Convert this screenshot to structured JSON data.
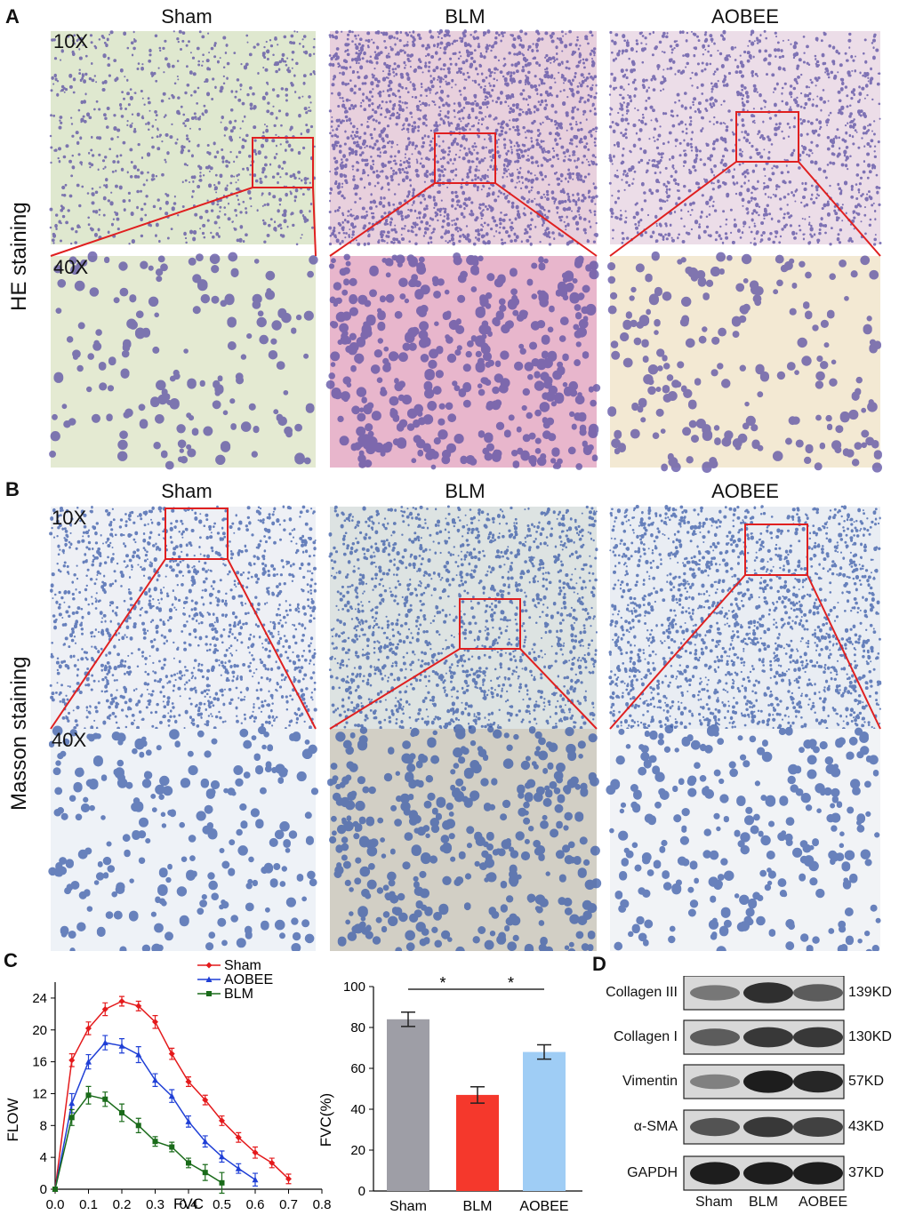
{
  "panel_a": {
    "letter": "A",
    "row_label": "HE staining",
    "columns": [
      "Sham",
      "BLM",
      "AOBEE"
    ],
    "mag_low": "10X",
    "mag_high": "40X",
    "colors": {
      "bg_low": [
        "#dfe8cf",
        "#e8d0dd",
        "#ecdde8"
      ],
      "bg_high": [
        "#e4ead2",
        "#e8b6cc",
        "#f3e9d3"
      ],
      "nucleus": "#5a4ea3"
    }
  },
  "panel_b": {
    "letter": "B",
    "row_label": "Masson staining",
    "columns": [
      "Sham",
      "BLM",
      "AOBEE"
    ],
    "mag_low": "10X",
    "mag_high": "40X",
    "colors": {
      "bg_low": [
        "#eef0f5",
        "#dde3e2",
        "#e9edf3"
      ],
      "bg_high": [
        "#eef2f7",
        "#d2cfc5",
        "#f1f3f6"
      ],
      "nucleus": "#3a5ba8"
    }
  },
  "panel_c": {
    "letter": "C",
    "chart_data": [
      {
        "type": "line",
        "xlabel": "FVC",
        "ylabel": "FLOW",
        "xlim": [
          0.0,
          0.8
        ],
        "ylim": [
          0,
          26
        ],
        "xticks": [
          "0.0",
          "0.1",
          "0.2",
          "0.3",
          "0.4",
          "0.5",
          "0.6",
          "0.7",
          "0.8"
        ],
        "yticks": [
          "0",
          "4",
          "8",
          "12",
          "16",
          "20",
          "24"
        ],
        "legend_position": "top-right",
        "series": [
          {
            "name": "Sham",
            "color": "#e41a1c",
            "x": [
              0.0,
              0.05,
              0.1,
              0.15,
              0.2,
              0.25,
              0.3,
              0.35,
              0.4,
              0.45,
              0.5,
              0.55,
              0.6,
              0.65,
              0.7
            ],
            "y": [
              0,
              16.2,
              20.2,
              22.6,
              23.6,
              23.0,
              21.0,
              17.0,
              13.5,
              11.2,
              8.6,
              6.5,
              4.6,
              3.3,
              1.3
            ],
            "err": [
              0,
              0.8,
              0.8,
              0.8,
              0.6,
              0.6,
              0.8,
              0.7,
              0.6,
              0.6,
              0.6,
              0.6,
              0.7,
              0.6,
              0.6
            ]
          },
          {
            "name": "AOBEE",
            "color": "#1f3fd6",
            "x": [
              0.0,
              0.05,
              0.1,
              0.15,
              0.2,
              0.25,
              0.3,
              0.35,
              0.4,
              0.45,
              0.5,
              0.55,
              0.6
            ],
            "y": [
              0,
              10.8,
              16.0,
              18.4,
              18.0,
              16.9,
              13.7,
              11.7,
              8.5,
              6.0,
              4.1,
              2.6,
              1.2
            ],
            "err": [
              0,
              1.2,
              0.9,
              0.9,
              0.9,
              1.0,
              0.8,
              0.8,
              0.7,
              0.7,
              0.7,
              0.6,
              0.8
            ]
          },
          {
            "name": "BLM",
            "color": "#1a6b1a",
            "x": [
              0.0,
              0.05,
              0.1,
              0.15,
              0.2,
              0.25,
              0.3,
              0.35,
              0.4,
              0.45,
              0.5
            ],
            "y": [
              0,
              9.0,
              11.8,
              11.3,
              9.6,
              8.0,
              6.0,
              5.3,
              3.3,
              2.1,
              0.8
            ],
            "err": [
              0,
              1.0,
              1.1,
              0.9,
              1.1,
              0.9,
              0.6,
              0.6,
              0.6,
              1.0,
              1.3
            ]
          }
        ]
      },
      {
        "type": "bar",
        "ylabel": "FVC(%)",
        "ylim": [
          0,
          100
        ],
        "yticks": [
          "0",
          "20",
          "40",
          "60",
          "80",
          "100"
        ],
        "categories": [
          "Sham",
          "BLM",
          "AOBEE"
        ],
        "values": [
          84,
          47,
          68
        ],
        "err": [
          3.5,
          4,
          3.5
        ],
        "colors": [
          "#9e9ea6",
          "#f5382c",
          "#9fcdf5"
        ],
        "annotations": [
          "*",
          "*"
        ]
      }
    ]
  },
  "panel_d": {
    "letter": "D",
    "rows": [
      {
        "label": "Collagen III",
        "kd": "139KD",
        "intensity": [
          0.45,
          0.85,
          0.6
        ]
      },
      {
        "label": "Collagen I",
        "kd": "130KD",
        "intensity": [
          0.6,
          0.8,
          0.8
        ]
      },
      {
        "label": "Vimentin",
        "kd": "57KD",
        "intensity": [
          0.4,
          0.95,
          0.9
        ]
      },
      {
        "label": "α-SMA",
        "kd": "43KD",
        "intensity": [
          0.65,
          0.8,
          0.75
        ]
      },
      {
        "label": "GAPDH",
        "kd": "37KD",
        "intensity": [
          0.95,
          0.95,
          0.95
        ]
      }
    ],
    "lanes": [
      "Sham",
      "BLM",
      "AOBEE"
    ]
  }
}
